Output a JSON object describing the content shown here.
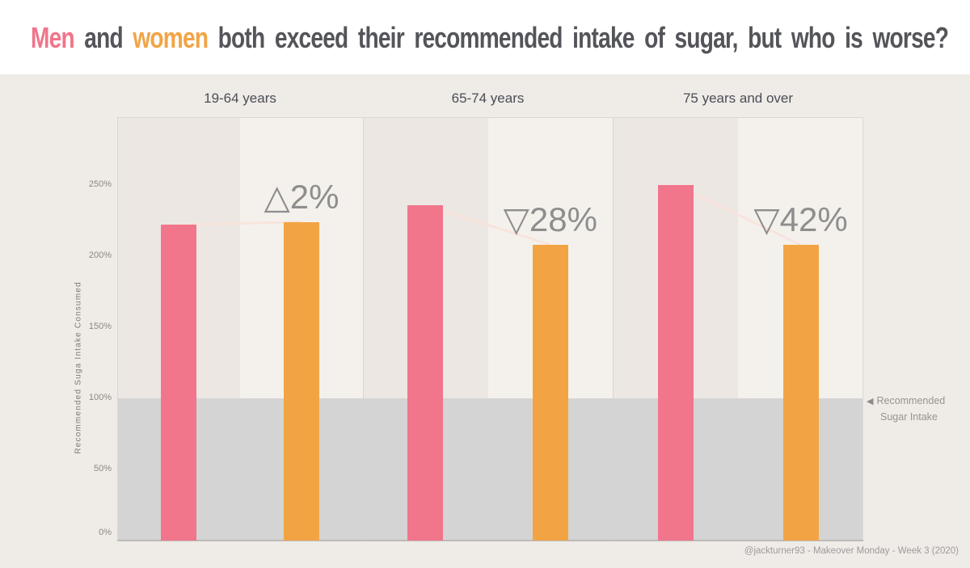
{
  "title": {
    "men": "Men",
    "and": " and ",
    "women": "women",
    "rest": " both exceed their recommended intake of sugar, but who is worse?"
  },
  "colors": {
    "men": "#F1758B",
    "women": "#F2A445",
    "band": "#D4D4D4",
    "panel_left_bg": "#ECE7E2",
    "panel_right_bg": "#F4F1ED",
    "page_bg": "#EFEBE7",
    "title_bg": "#FFFFFF",
    "annotation_text": "#8E8E8E",
    "connector_line": "#F8E4DC",
    "axis_text": "#8C8880",
    "header_text": "#4A4E55"
  },
  "chart_data": {
    "type": "bar",
    "title": "Men and women both exceed their recommended intake of sugar, but who is worse?",
    "ylabel": "Recommended Suga Intake Consumed",
    "ylim": [
      0,
      298
    ],
    "yticks": [
      0,
      50,
      100,
      150,
      200,
      250
    ],
    "ytick_suffix": "%",
    "grid": false,
    "categories": [
      "19-64 years",
      "65-74 years",
      "75 years and over"
    ],
    "series": [
      {
        "name": "Men",
        "color": "#F1758B",
        "values": [
          222,
          236,
          250
        ]
      },
      {
        "name": "Women",
        "color": "#F2A445",
        "values": [
          224,
          208,
          208
        ]
      }
    ],
    "annotations": [
      {
        "panel": "19-64 years",
        "symbol": "△",
        "value": "2%",
        "meaning": "women 2% above men"
      },
      {
        "panel": "65-74 years",
        "symbol": "▽",
        "value": "28%",
        "meaning": "women 28% below men"
      },
      {
        "panel": "75 years and over",
        "symbol": "▽",
        "value": "42%",
        "meaning": "women 42% below men"
      }
    ],
    "reference_band": {
      "from": 0,
      "to": 100,
      "label": "Recommended Sugar Intake"
    }
  },
  "reference_label": {
    "arrow": "◀",
    "line1": "Recommended",
    "line2": "Sugar Intake"
  },
  "footer": {
    "credit": "@jackturner93 - Makeover Monday - Week 3 (2020)"
  }
}
